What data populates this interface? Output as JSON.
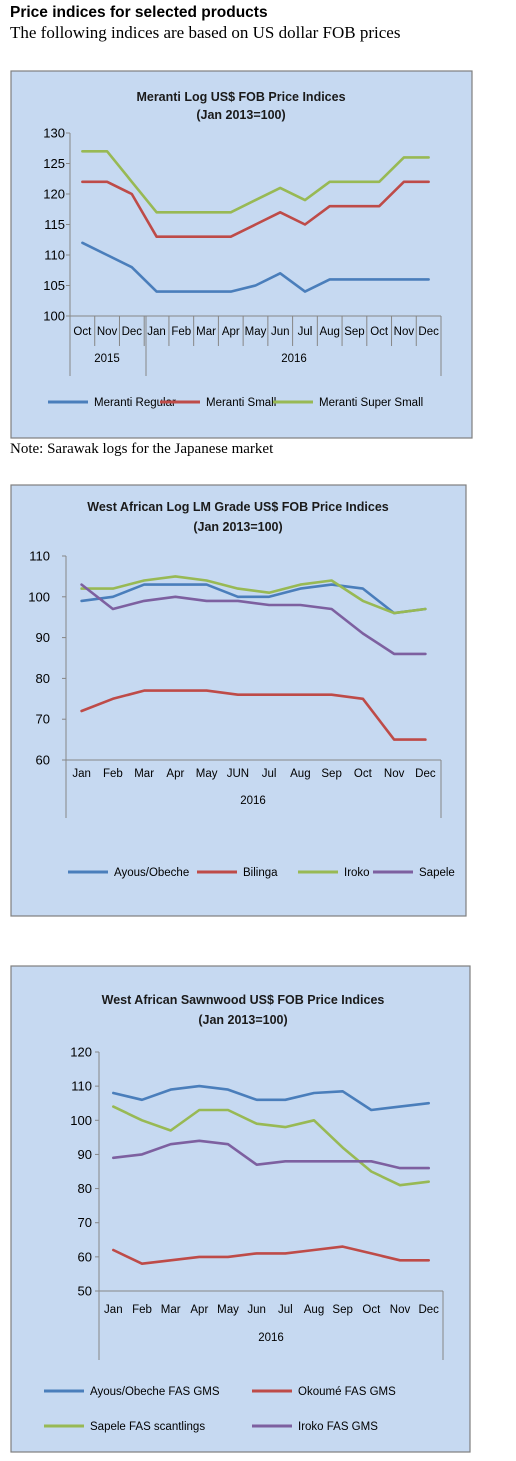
{
  "header": {
    "title": "Price indices for selected products",
    "subtitle": "The following indices are based on US dollar FOB prices"
  },
  "note": "Note: Sarawak logs for the Japanese market",
  "chart_data": [
    {
      "type": "line",
      "title": "Meranti Log US$ FOB Price Indices",
      "subtitle": "(Jan 2013=100)",
      "categories": [
        "Oct",
        "Nov",
        "Dec",
        "Jan",
        "Feb",
        "Mar",
        "Apr",
        "May",
        "Jun",
        "Jul",
        "Aug",
        "Sep",
        "Oct",
        "Nov",
        "Dec"
      ],
      "groups": [
        {
          "label": "2015",
          "span": 3
        },
        {
          "label": "2016",
          "span": 12
        }
      ],
      "ylim": [
        100,
        130
      ],
      "yticks": [
        100,
        105,
        110,
        115,
        120,
        125,
        130
      ],
      "series": [
        {
          "name": "Meranti Regular",
          "color": "#4a7ebb",
          "values": [
            112,
            110,
            108,
            104,
            104,
            104,
            104,
            105,
            107,
            104,
            106,
            106,
            106,
            106,
            106
          ]
        },
        {
          "name": "Meranti Small",
          "color": "#be4b48",
          "values": [
            122,
            122,
            120,
            113,
            113,
            113,
            113,
            115,
            117,
            115,
            118,
            118,
            118,
            122,
            122
          ]
        },
        {
          "name": "Meranti Super Small",
          "color": "#98b954",
          "values": [
            127,
            127,
            122,
            117,
            117,
            117,
            117,
            119,
            121,
            119,
            122,
            122,
            122,
            126,
            126
          ]
        }
      ]
    },
    {
      "type": "line",
      "title": "West African Log LM Grade US$ FOB Price Indices",
      "subtitle": "(Jan 2013=100)",
      "categories": [
        "Jan",
        "Feb",
        "Mar",
        "Apr",
        "May",
        "JUN",
        "Jul",
        "Aug",
        "Sep",
        "Oct",
        "Nov",
        "Dec"
      ],
      "groups": [
        {
          "label": "2016",
          "span": 12
        }
      ],
      "ylim": [
        60,
        110
      ],
      "yticks": [
        60,
        70,
        80,
        90,
        100,
        110
      ],
      "series": [
        {
          "name": "Ayous/Obeche",
          "color": "#4a7ebb",
          "values": [
            99,
            100,
            103,
            103,
            103,
            100,
            100,
            102,
            103,
            102,
            96,
            97
          ]
        },
        {
          "name": "Bilinga",
          "color": "#be4b48",
          "values": [
            72,
            75,
            77,
            77,
            77,
            76,
            76,
            76,
            76,
            75,
            65,
            65
          ]
        },
        {
          "name": "Iroko",
          "color": "#98b954",
          "values": [
            102,
            102,
            104,
            105,
            104,
            102,
            101,
            103,
            104,
            99,
            96,
            97
          ]
        },
        {
          "name": "Sapele",
          "color": "#7d60a0",
          "values": [
            103,
            97,
            99,
            100,
            99,
            99,
            98,
            98,
            97,
            91,
            86,
            86
          ]
        }
      ]
    },
    {
      "type": "line",
      "title": "West African Sawnwood US$ FOB Price Indices",
      "subtitle": "(Jan 2013=100)",
      "categories": [
        "Jan",
        "Feb",
        "Mar",
        "Apr",
        "May",
        "Jun",
        "Jul",
        "Aug",
        "Sep",
        "Oct",
        "Nov",
        "Dec"
      ],
      "groups": [
        {
          "label": "2016",
          "span": 12
        }
      ],
      "ylim": [
        50,
        120
      ],
      "yticks": [
        50,
        60,
        70,
        80,
        90,
        100,
        110,
        120
      ],
      "series": [
        {
          "name": "Ayous/Obeche  FAS GMS",
          "color": "#4a7ebb",
          "values": [
            108,
            106,
            109,
            110,
            109,
            106,
            106,
            108,
            108.5,
            103,
            104,
            105
          ]
        },
        {
          "name": "Okoumé  FAS GMS",
          "color": "#be4b48",
          "values": [
            62,
            58,
            59,
            60,
            60,
            61,
            61,
            62,
            63,
            61,
            59,
            59
          ]
        },
        {
          "name": "Sapele FAS scantlings",
          "color": "#98b954",
          "values": [
            104,
            100,
            97,
            103,
            103,
            99,
            98,
            100,
            92,
            85,
            81,
            82
          ]
        },
        {
          "name": "Iroko FAS GMS",
          "color": "#7d60a0",
          "values": [
            89,
            90,
            93,
            94,
            93,
            87,
            88,
            88,
            88,
            88,
            86,
            86
          ]
        }
      ]
    }
  ]
}
